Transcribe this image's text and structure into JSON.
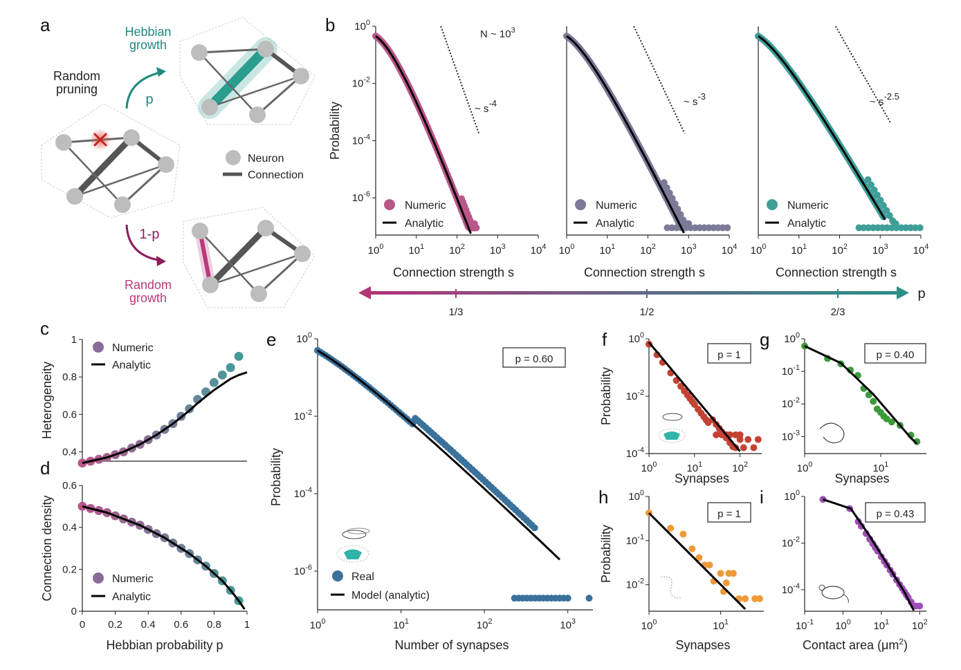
{
  "panel_labels": {
    "a": "a",
    "b": "b",
    "c": "c",
    "d": "d",
    "e": "e",
    "f": "f",
    "g": "g",
    "h": "h",
    "i": "i"
  },
  "schematic": {
    "hebbian": [
      "Hebbian",
      "growth"
    ],
    "random_pruning": [
      "Random",
      "pruning"
    ],
    "random_growth": [
      "Random",
      "growth"
    ],
    "p_label": "p",
    "one_minus_p": "1-p",
    "legend_neuron": "Neuron",
    "legend_connection": "Connection"
  },
  "colors": {
    "magenta": "#b9568a",
    "slate": "#7c7a98",
    "teal": "#3f9e98",
    "blue": "#3a729b",
    "red": "#c44232",
    "green": "#3b9a3b",
    "orange": "#ef9a3a",
    "purple": "#9c4fb5",
    "arrow_left": "#b23575",
    "arrow_right": "#2a8f86",
    "schematic_teal": "#2a9d8f",
    "schematic_magenta": "#b83a7a"
  },
  "p_axis": {
    "label": "p",
    "ticks": [
      "1/3",
      "1/2",
      "2/3"
    ],
    "tick_colors": [
      "#b23575",
      "#666688",
      "#2a8f86"
    ]
  },
  "chart_data": [
    {
      "id": "b1",
      "type": "scatter",
      "xlabel": "Connection strength s",
      "ylabel": "Probability",
      "xscale": "log",
      "yscale": "log",
      "xlim": [
        1,
        10000
      ],
      "ylim": [
        5e-08,
        1
      ],
      "xticks": [
        "10",
        "10",
        "10",
        "10",
        "10"
      ],
      "xtick_exp": [
        "0",
        "1",
        "2",
        "3",
        "4"
      ],
      "yticks": [
        "10",
        "10",
        "10",
        "10"
      ],
      "ytick_exp": [
        "0",
        "-2",
        "-4",
        "-6"
      ],
      "annotation": "N ~ 10",
      "annotation_exp": "3",
      "slope_label": "~ s",
      "slope_exp": "-4",
      "legend": [
        "Numeric",
        "Analytic"
      ],
      "color": "#b9568a",
      "slope": -4
    },
    {
      "id": "b2",
      "type": "scatter",
      "xlabel": "Connection strength s",
      "xscale": "log",
      "yscale": "log",
      "xlim": [
        1,
        10000
      ],
      "ylim": [
        5e-08,
        1
      ],
      "xticks": [
        "10",
        "10",
        "10",
        "10",
        "10"
      ],
      "xtick_exp": [
        "0",
        "1",
        "2",
        "3",
        "4"
      ],
      "slope_label": "~ s",
      "slope_exp": "-3",
      "legend": [
        "Numeric",
        "Analytic"
      ],
      "color": "#7c7a98",
      "slope": -3
    },
    {
      "id": "b3",
      "type": "scatter",
      "xlabel": "Connection strength s",
      "xscale": "log",
      "yscale": "log",
      "xlim": [
        1,
        10000
      ],
      "ylim": [
        5e-08,
        1
      ],
      "xticks": [
        "10",
        "10",
        "10",
        "10",
        "10"
      ],
      "xtick_exp": [
        "0",
        "1",
        "2",
        "3",
        "4"
      ],
      "slope_label": "~ s",
      "slope_exp": "-2.5",
      "legend": [
        "Numeric",
        "Analytic"
      ],
      "color": "#3f9e98",
      "slope": -2.5
    },
    {
      "id": "c",
      "type": "scatter",
      "xlabel": "",
      "ylabel": "Heterogeneity",
      "xlim": [
        0,
        1
      ],
      "ylim": [
        0.35,
        1.0
      ],
      "yticks": [
        "0.4",
        "0.6",
        "0.8",
        "1"
      ],
      "legend": [
        "Numeric",
        "Analytic"
      ],
      "x": [
        0,
        0.05,
        0.1,
        0.15,
        0.2,
        0.25,
        0.3,
        0.35,
        0.4,
        0.45,
        0.5,
        0.55,
        0.6,
        0.65,
        0.7,
        0.75,
        0.8,
        0.85,
        0.9,
        0.95
      ],
      "numeric": [
        0.34,
        0.35,
        0.36,
        0.37,
        0.385,
        0.4,
        0.42,
        0.44,
        0.465,
        0.49,
        0.52,
        0.55,
        0.59,
        0.63,
        0.68,
        0.72,
        0.77,
        0.81,
        0.85,
        0.91
      ],
      "analytic": [
        0.34,
        0.35,
        0.36,
        0.37,
        0.385,
        0.4,
        0.42,
        0.44,
        0.465,
        0.49,
        0.52,
        0.55,
        0.585,
        0.62,
        0.66,
        0.695,
        0.73,
        0.76,
        0.79,
        0.81
      ]
    },
    {
      "id": "d",
      "type": "scatter",
      "xlabel": "Hebbian probability p",
      "ylabel": "Connection density",
      "xlim": [
        0,
        1
      ],
      "ylim": [
        0,
        0.6
      ],
      "xticks": [
        "0",
        "0.2",
        "0.4",
        "0.6",
        "0.8",
        "1"
      ],
      "yticks": [
        "0",
        "0.2",
        "0.4",
        "0.6"
      ],
      "legend": [
        "Numeric",
        "Analytic"
      ],
      "x": [
        0,
        0.05,
        0.1,
        0.15,
        0.2,
        0.25,
        0.3,
        0.35,
        0.4,
        0.45,
        0.5,
        0.55,
        0.6,
        0.65,
        0.7,
        0.75,
        0.8,
        0.85,
        0.9,
        0.95
      ],
      "numeric": [
        0.5,
        0.49,
        0.48,
        0.47,
        0.455,
        0.44,
        0.425,
        0.41,
        0.39,
        0.37,
        0.35,
        0.325,
        0.3,
        0.275,
        0.245,
        0.215,
        0.18,
        0.145,
        0.1,
        0.05
      ]
    },
    {
      "id": "e",
      "type": "scatter",
      "xlabel": "Number of synapses",
      "ylabel": "Probability",
      "xscale": "log",
      "yscale": "log",
      "xlim": [
        1,
        2000
      ],
      "ylim": [
        1e-07,
        1
      ],
      "xticks": [
        "10",
        "10",
        "10",
        "10"
      ],
      "xtick_exp": [
        "0",
        "1",
        "2",
        "3"
      ],
      "yticks": [
        "10",
        "10",
        "10",
        "10"
      ],
      "ytick_exp": [
        "0",
        "-2",
        "-4",
        "-6"
      ],
      "box_label": "p = 0.60",
      "legend": [
        "Real",
        "Model (analytic)"
      ],
      "color": "#3a729b"
    },
    {
      "id": "f",
      "type": "scatter",
      "xlabel": "Synapses",
      "ylabel": "Probability",
      "xscale": "log",
      "yscale": "log",
      "xlim": [
        1,
        300
      ],
      "ylim": [
        0.0001,
        1
      ],
      "xticks": [
        "10",
        "10",
        "10"
      ],
      "xtick_exp": [
        "0",
        "1",
        "2"
      ],
      "yticks": [
        "10",
        "10",
        "10"
      ],
      "ytick_exp": [
        "0",
        "-2",
        "-4"
      ],
      "box_label": "p = 1",
      "color": "#c44232"
    },
    {
      "id": "g",
      "type": "scatter",
      "xlabel": "Synapses",
      "xscale": "log",
      "yscale": "log",
      "xlim": [
        1,
        40
      ],
      "ylim": [
        0.0003,
        1
      ],
      "xticks": [
        "10",
        "10"
      ],
      "xtick_exp": [
        "0",
        "1"
      ],
      "yticks": [
        "10",
        "10",
        "10",
        "10"
      ],
      "ytick_exp": [
        "0",
        "-1",
        "-2",
        "-3"
      ],
      "box_label": "p = 0.40",
      "color": "#3b9a3b"
    },
    {
      "id": "h",
      "type": "scatter",
      "xlabel": "Synapses",
      "ylabel": "Probability",
      "xscale": "log",
      "yscale": "log",
      "xlim": [
        1,
        40
      ],
      "ylim": [
        0.0025,
        1
      ],
      "xticks": [
        "10",
        "10"
      ],
      "xtick_exp": [
        "0",
        "1"
      ],
      "yticks": [
        "10",
        "10",
        "10"
      ],
      "ytick_exp": [
        "0",
        "-1",
        "-2"
      ],
      "box_label": "p = 1",
      "color": "#ef9a3a"
    },
    {
      "id": "i",
      "type": "scatter",
      "xlabel": "Contact area (μm",
      "xlabel_exp": "2",
      "xlabel_end": ")",
      "xscale": "log",
      "yscale": "log",
      "xlim": [
        0.1,
        150
      ],
      "ylim": [
        1.2e-05,
        1
      ],
      "xticks": [
        "10",
        "10",
        "10",
        "10"
      ],
      "xtick_exp": [
        "-1",
        "0",
        "1",
        "2"
      ],
      "yticks": [
        "10",
        "10",
        "10"
      ],
      "ytick_exp": [
        "0",
        "-2",
        "-4"
      ],
      "box_label": "p = 0.43",
      "color": "#9c4fb5"
    }
  ]
}
